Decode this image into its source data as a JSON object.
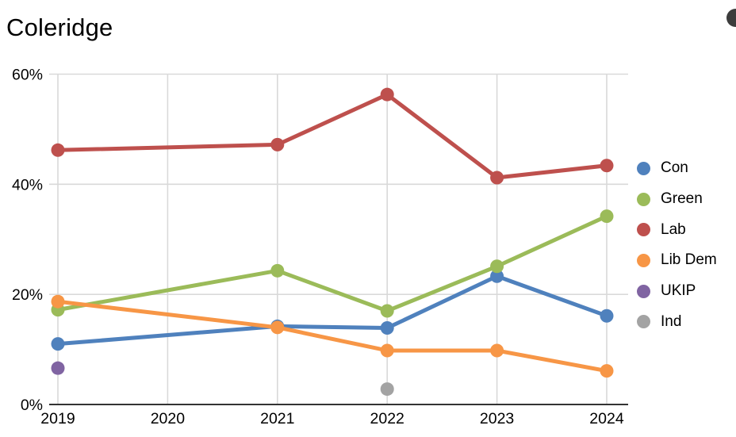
{
  "title": "Coleridge",
  "corner_icon": {
    "name": "dark-circle",
    "color": "#3C3C3C"
  },
  "chart_data": {
    "type": "line",
    "title": "Coleridge",
    "x_values": [
      2019,
      2020,
      2021,
      2022,
      2023,
      2024
    ],
    "x_labels": [
      "2019",
      "2020",
      "2021",
      "2022",
      "2023",
      "2024"
    ],
    "ylim": [
      0,
      60
    ],
    "yticks": [
      {
        "value": 0,
        "label": "0%"
      },
      {
        "value": 20,
        "label": "20%"
      },
      {
        "value": 40,
        "label": "40%"
      },
      {
        "value": 60,
        "label": "60%"
      }
    ],
    "grid": true,
    "legend_position": "right",
    "theme": {
      "grid_color": "#D9D9D9",
      "axis_color": "#333333",
      "text_color": "#000000"
    },
    "series": [
      {
        "name": "Con",
        "color": "#4F81BD",
        "points": [
          {
            "x": 2019,
            "y": 11.0
          },
          {
            "x": 2021,
            "y": 14.2
          },
          {
            "x": 2022,
            "y": 13.9
          },
          {
            "x": 2023,
            "y": 23.3
          },
          {
            "x": 2024,
            "y": 16.1
          }
        ]
      },
      {
        "name": "Green",
        "color": "#9BBB59",
        "points": [
          {
            "x": 2019,
            "y": 17.2
          },
          {
            "x": 2021,
            "y": 24.3
          },
          {
            "x": 2022,
            "y": 17.0
          },
          {
            "x": 2023,
            "y": 25.1
          },
          {
            "x": 2024,
            "y": 34.2
          }
        ]
      },
      {
        "name": "Lab",
        "color": "#BE504D",
        "points": [
          {
            "x": 2019,
            "y": 46.2
          },
          {
            "x": 2021,
            "y": 47.2
          },
          {
            "x": 2022,
            "y": 56.3
          },
          {
            "x": 2023,
            "y": 41.2
          },
          {
            "x": 2024,
            "y": 43.4
          }
        ]
      },
      {
        "name": "Lib Dem",
        "color": "#F79646",
        "points": [
          {
            "x": 2019,
            "y": 18.7
          },
          {
            "x": 2021,
            "y": 14.0
          },
          {
            "x": 2022,
            "y": 9.8
          },
          {
            "x": 2023,
            "y": 9.8
          },
          {
            "x": 2024,
            "y": 6.1
          }
        ]
      },
      {
        "name": "UKIP",
        "color": "#8064A2",
        "points": [
          {
            "x": 2019,
            "y": 6.6
          }
        ]
      },
      {
        "name": "Ind",
        "color": "#A3A3A3",
        "points": [
          {
            "x": 2022,
            "y": 2.8
          }
        ]
      }
    ]
  }
}
